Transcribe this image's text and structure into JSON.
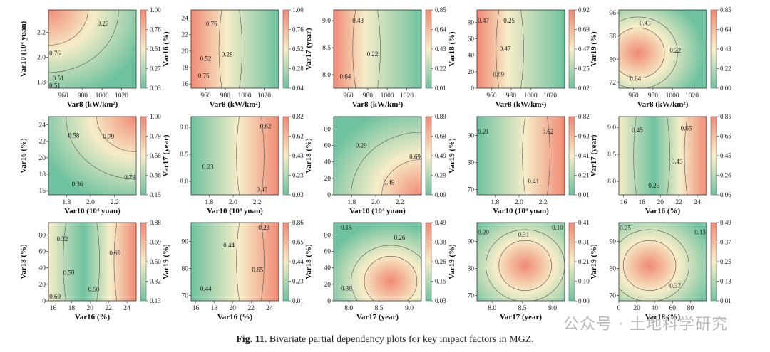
{
  "caption": {
    "label": "Fig. 11.",
    "text": "Bivariate partial dependency plots for key impact factors in MGZ."
  },
  "watermark": "公众号 · 土地科学研究",
  "colors": {
    "low": "#6fc2a0",
    "mid": "#f6edc8",
    "high": "#f08a74",
    "contour": "#5a5a5a"
  },
  "chart_data": [
    {
      "type": "heatmap",
      "xlabel": "Var8 (kW/km²)",
      "ylabel": "Var10 (10⁴ yuan)",
      "xlim": [
        945,
        1035
      ],
      "ylim": [
        1.75,
        2.38
      ],
      "xticks": [
        960,
        980,
        1000,
        1020
      ],
      "yticks": [
        1.8,
        2.0,
        2.2
      ],
      "colorbar_ticks": [
        "0.03",
        "0.27",
        "0.51",
        "0.76",
        "1.00"
      ],
      "crange": [
        0.03,
        1.0
      ],
      "contour_labels": [
        {
          "text": "0.27",
          "x": 1001,
          "y": 2.27
        },
        {
          "text": "0.76",
          "x": 951,
          "y": 2.03
        },
        {
          "text": "0.51",
          "x": 955,
          "y": 1.83
        },
        {
          "text": "0.51",
          "x": 946,
          "y": 1.77
        }
      ]
    },
    {
      "type": "heatmap",
      "xlabel": "Var8 (kW/km²)",
      "ylabel": "Var16 (%)",
      "xlim": [
        945,
        1035
      ],
      "ylim": [
        15.5,
        25
      ],
      "xticks": [
        960,
        980,
        1000,
        1020
      ],
      "yticks": [
        16,
        18,
        20,
        22,
        24
      ],
      "colorbar_ticks": [
        "0.04",
        "0.28",
        "0.52",
        "0.76",
        "1.00"
      ],
      "crange": [
        0.04,
        1.0
      ],
      "contour_labels": [
        {
          "text": "0.76",
          "x": 966,
          "y": 23.3
        },
        {
          "text": "0.52",
          "x": 960,
          "y": 19.1
        },
        {
          "text": "0.28",
          "x": 982,
          "y": 19.6
        },
        {
          "text": "0.76",
          "x": 958,
          "y": 17.0
        }
      ]
    },
    {
      "type": "heatmap",
      "xlabel": "Var8 (kW/km²)",
      "ylabel": "Var17 (year)",
      "xlim": [
        945,
        1035
      ],
      "ylim": [
        7.75,
        9.2
      ],
      "xticks": [
        960,
        980,
        1000,
        1020
      ],
      "yticks": [
        8.0,
        8.5,
        9.0
      ],
      "colorbar_ticks": [
        "0.01",
        "0.22",
        "0.43",
        "0.64",
        "0.85"
      ],
      "crange": [
        0.01,
        0.85
      ],
      "contour_labels": [
        {
          "text": "0.43",
          "x": 970,
          "y": 9.0
        },
        {
          "text": "0.22",
          "x": 985,
          "y": 8.38
        },
        {
          "text": "0.64",
          "x": 957,
          "y": 7.97
        }
      ]
    },
    {
      "type": "heatmap",
      "xlabel": "Var8 (kW/km²)",
      "ylabel": "Var18 (%)",
      "xlim": [
        945,
        1035
      ],
      "ylim": [
        0,
        95
      ],
      "xticks": [
        960,
        980,
        1000,
        1020
      ],
      "yticks": [
        0,
        20,
        40,
        60,
        80
      ],
      "colorbar_ticks": [
        "0.02",
        "0.25",
        "0.47",
        "0.69",
        "0.92"
      ],
      "crange": [
        0.02,
        0.92
      ],
      "contour_labels": [
        {
          "text": "0.47",
          "x": 950,
          "y": 82
        },
        {
          "text": "0.25",
          "x": 978,
          "y": 82
        },
        {
          "text": "0.47",
          "x": 974,
          "y": 48
        },
        {
          "text": "0.69",
          "x": 967,
          "y": 17
        }
      ]
    },
    {
      "type": "heatmap",
      "xlabel": "Var8 (kW/km²)",
      "ylabel": "Var19 (%)",
      "xlim": [
        945,
        1035
      ],
      "ylim": [
        70,
        97
      ],
      "xticks": [
        960,
        980,
        1000,
        1020
      ],
      "yticks": [
        72,
        80,
        88,
        96
      ],
      "colorbar_ticks": [
        "0.00",
        "0.22",
        "0.43",
        "0.64",
        "0.85"
      ],
      "crange": [
        0.0,
        0.85
      ],
      "contour_labels": [
        {
          "text": "0.43",
          "x": 972,
          "y": 92.5
        },
        {
          "text": "0.22",
          "x": 1003,
          "y": 83
        },
        {
          "text": "0.64",
          "x": 962,
          "y": 73.3
        }
      ]
    },
    {
      "type": "heatmap",
      "xlabel": "Var10 (10⁴ yuan)",
      "ylabel": "Var16 (%)",
      "xlim": [
        1.65,
        2.38
      ],
      "ylim": [
        15.5,
        25
      ],
      "xticks": [
        1.8,
        2.0,
        2.2
      ],
      "yticks": [
        16,
        18,
        20,
        22,
        24
      ],
      "colorbar_ticks": [
        "0.15",
        "0.36",
        "0.58",
        "0.79",
        "1.00"
      ],
      "crange": [
        0.15,
        1.0
      ],
      "contour_labels": [
        {
          "text": "0.58",
          "x": 1.86,
          "y": 22.7
        },
        {
          "text": "0.79",
          "x": 2.15,
          "y": 22.6
        },
        {
          "text": "0.36",
          "x": 1.89,
          "y": 16.8
        },
        {
          "text": "0.79",
          "x": 2.35,
          "y": 17.6
        }
      ]
    },
    {
      "type": "heatmap",
      "xlabel": "Var10 (10⁴ yuan)",
      "ylabel": "Var17 (year)",
      "xlim": [
        1.65,
        2.38
      ],
      "ylim": [
        7.75,
        9.2
      ],
      "xticks": [
        1.8,
        2.0,
        2.2
      ],
      "yticks": [
        8.0,
        8.5,
        9.0
      ],
      "colorbar_ticks": [
        "0.03",
        "0.23",
        "0.43",
        "0.62",
        "0.82"
      ],
      "crange": [
        0.03,
        0.82
      ],
      "contour_labels": [
        {
          "text": "0.62",
          "x": 2.27,
          "y": 9.02
        },
        {
          "text": "0.23",
          "x": 1.79,
          "y": 8.27
        },
        {
          "text": "0.43",
          "x": 2.24,
          "y": 7.85
        }
      ]
    },
    {
      "type": "heatmap",
      "xlabel": "Var10 (10⁴ yuan)",
      "ylabel": "Var18 (%)",
      "xlim": [
        1.65,
        2.38
      ],
      "ylim": [
        0,
        95
      ],
      "xticks": [
        1.8,
        2.0,
        2.2
      ],
      "yticks": [
        0,
        20,
        40,
        60,
        80
      ],
      "colorbar_ticks": [
        "0.09",
        "0.29",
        "0.49",
        "0.69",
        "0.89"
      ],
      "crange": [
        0.09,
        0.89
      ],
      "contour_labels": [
        {
          "text": "0.29",
          "x": 1.88,
          "y": 60
        },
        {
          "text": "0.69",
          "x": 2.33,
          "y": 46
        },
        {
          "text": "0.49",
          "x": 2.11,
          "y": 15
        }
      ]
    },
    {
      "type": "heatmap",
      "xlabel": "Var10 (10⁴ yuan)",
      "ylabel": "Var19 (%)",
      "xlim": [
        1.65,
        2.38
      ],
      "ylim": [
        68,
        97
      ],
      "xticks": [
        1.8,
        2.0,
        2.2
      ],
      "yticks": [
        70,
        80,
        90
      ],
      "colorbar_ticks": [
        "0.01",
        "0.21",
        "0.41",
        "0.62",
        "0.82"
      ],
      "crange": [
        0.01,
        0.82
      ],
      "contour_labels": [
        {
          "text": "0.21",
          "x": 1.67,
          "y": 91.5
        },
        {
          "text": "0.62",
          "x": 2.24,
          "y": 91.5
        },
        {
          "text": "0.41",
          "x": 2.12,
          "y": 73
        }
      ]
    },
    {
      "type": "heatmap",
      "xlabel": "Var16 (%)",
      "ylabel": "Var17 (year)",
      "xlim": [
        15.5,
        25
      ],
      "ylim": [
        7.75,
        9.2
      ],
      "xticks": [
        16,
        18,
        20,
        22,
        24
      ],
      "yticks": [
        8.0,
        8.5,
        9.0
      ],
      "colorbar_ticks": [
        "0.06",
        "0.26",
        "0.45",
        "0.65",
        "0.85"
      ],
      "crange": [
        0.06,
        0.85
      ],
      "contour_labels": [
        {
          "text": "0.45",
          "x": 17.5,
          "y": 8.95
        },
        {
          "text": "0.65",
          "x": 22.8,
          "y": 8.98
        },
        {
          "text": "0.45",
          "x": 21.8,
          "y": 8.37
        },
        {
          "text": "0.26",
          "x": 19.3,
          "y": 7.92
        }
      ]
    },
    {
      "type": "heatmap",
      "xlabel": "Var16 (%)",
      "ylabel": "Var18 (%)",
      "xlim": [
        15.5,
        25
      ],
      "ylim": [
        0,
        95
      ],
      "xticks": [
        16,
        18,
        20,
        22,
        24
      ],
      "yticks": [
        0,
        20,
        40,
        60,
        80
      ],
      "colorbar_ticks": [
        "0.13",
        "0.32",
        "0.50",
        "0.69",
        "0.88"
      ],
      "crange": [
        0.13,
        0.88
      ],
      "contour_labels": [
        {
          "text": "0.32",
          "x": 17,
          "y": 75
        },
        {
          "text": "0.69",
          "x": 22.7,
          "y": 58
        },
        {
          "text": "0.50",
          "x": 17.7,
          "y": 34
        },
        {
          "text": "0.50",
          "x": 20.4,
          "y": 14
        },
        {
          "text": "0.69",
          "x": 16.2,
          "y": 5
        }
      ]
    },
    {
      "type": "heatmap",
      "xlabel": "Var16 (%)",
      "ylabel": "Var19 (%)",
      "xlim": [
        15.5,
        25
      ],
      "ylim": [
        68,
        97
      ],
      "xticks": [
        16,
        18,
        20,
        22,
        24
      ],
      "yticks": [
        70,
        80,
        90
      ],
      "colorbar_ticks": [
        "0.01",
        "0.23",
        "0.44",
        "0.65",
        "0.86"
      ],
      "crange": [
        0.01,
        0.86
      ],
      "contour_labels": [
        {
          "text": "0.23",
          "x": 23.4,
          "y": 95.5
        },
        {
          "text": "0.44",
          "x": 19.6,
          "y": 88.5
        },
        {
          "text": "0.65",
          "x": 22.7,
          "y": 79.5
        },
        {
          "text": "0.44",
          "x": 17.1,
          "y": 72.5
        }
      ]
    },
    {
      "type": "heatmap",
      "xlabel": "Var17 (year)",
      "ylabel": "Var18 (%)",
      "xlim": [
        7.75,
        9.2
      ],
      "ylim": [
        0,
        95
      ],
      "xticks": [
        8.0,
        8.5,
        9.0
      ],
      "yticks": [
        0,
        20,
        40,
        60,
        80
      ],
      "colorbar_ticks": [
        "0.03",
        "0.15",
        "0.26",
        "0.38",
        "0.49"
      ],
      "crange": [
        0.03,
        0.49
      ],
      "contour_labels": [
        {
          "text": "0.15",
          "x": 7.96,
          "y": 89
        },
        {
          "text": "0.26",
          "x": 8.84,
          "y": 77
        },
        {
          "text": "0.38",
          "x": 7.96,
          "y": 15
        }
      ]
    },
    {
      "type": "heatmap",
      "xlabel": "Var17 (year)",
      "ylabel": "Var19 (%)",
      "xlim": [
        7.75,
        9.2
      ],
      "ylim": [
        68,
        97
      ],
      "xticks": [
        8.0,
        8.5,
        9.0
      ],
      "yticks": [
        70,
        80,
        90
      ],
      "colorbar_ticks": [
        "0.00",
        "0.10",
        "0.21",
        "0.31",
        "0.41"
      ],
      "crange": [
        0.0,
        0.41
      ],
      "contour_labels": [
        {
          "text": "0.20",
          "x": 7.8,
          "y": 93.5
        },
        {
          "text": "0.31",
          "x": 8.52,
          "y": 92.5
        },
        {
          "text": "0.10",
          "x": 9.08,
          "y": 95.2
        }
      ]
    },
    {
      "type": "heatmap",
      "xlabel": "Var18 (%)",
      "ylabel": "Var19 (%)",
      "xlim": [
        0,
        98
      ],
      "ylim": [
        68,
        97
      ],
      "xticks": [
        0,
        20,
        40,
        60,
        80
      ],
      "yticks": [
        70,
        80,
        90
      ],
      "colorbar_ticks": [
        "0.01",
        "0.13",
        "0.25",
        "0.37",
        "0.49"
      ],
      "crange": [
        0.01,
        0.49
      ],
      "contour_labels": [
        {
          "text": "0.25",
          "x": 5,
          "y": 95
        },
        {
          "text": "0.13",
          "x": 92,
          "y": 93.5
        },
        {
          "text": "0.37",
          "x": 63,
          "y": 73.5
        }
      ]
    }
  ]
}
